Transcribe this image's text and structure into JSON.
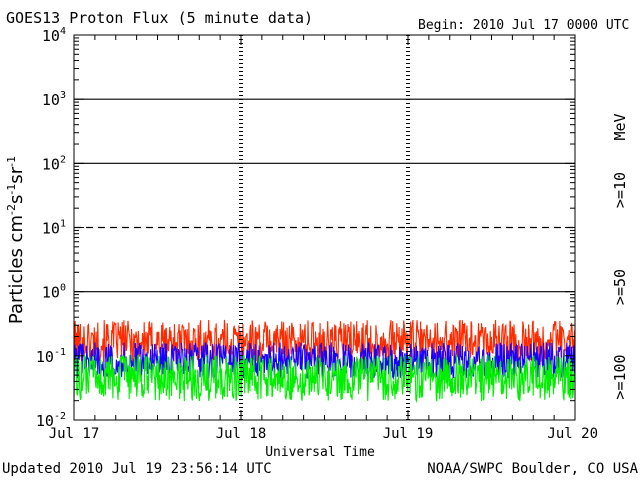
{
  "header": {
    "title": "GOES13 Proton Flux (5 minute data)",
    "begin": "Begin: 2010 Jul 17 0000 UTC"
  },
  "footer": {
    "updated": "Updated 2010 Jul 19 23:56:14 UTC",
    "credit": "NOAA/SWPC Boulder, CO USA"
  },
  "chart_data": {
    "type": "line",
    "title": "GOES13 Proton Flux (5 minute data)",
    "xlabel": "Universal Time",
    "ylabel": "Particles cm-2s-1sr-1",
    "yscale": "log",
    "ylim": [
      0.01,
      10000
    ],
    "xlim_days": [
      0,
      3
    ],
    "x_ticks": [
      "Jul 17",
      "Jul 18",
      "Jul 19",
      "Jul 20"
    ],
    "y_ticks": [
      {
        "base": "10",
        "exp": "4"
      },
      {
        "base": "10",
        "exp": "3"
      },
      {
        "base": "10",
        "exp": "2"
      },
      {
        "base": "10",
        "exp": "1"
      },
      {
        "base": "10",
        "exp": "0"
      },
      {
        "base": "10",
        "exp": "-1"
      },
      {
        "base": "10",
        "exp": "-2"
      }
    ],
    "threshold_lines": [
      {
        "value": 1000,
        "style": "solid"
      },
      {
        "value": 100,
        "style": "solid"
      },
      {
        "value": 10,
        "style": "dashed"
      },
      {
        "value": 1,
        "style": "solid"
      }
    ],
    "right_axis_unit": "MeV",
    "series": [
      {
        "name": ">=10",
        "color": "#ff2a00",
        "typical": 0.17,
        "spread_decades": 0.33
      },
      {
        "name": ">=50",
        "color": "#1a00ff",
        "typical": 0.085,
        "spread_decades": 0.28
      },
      {
        "name": ">=100",
        "color": "#00ee00",
        "typical": 0.045,
        "spread_decades": 0.36
      }
    ]
  }
}
